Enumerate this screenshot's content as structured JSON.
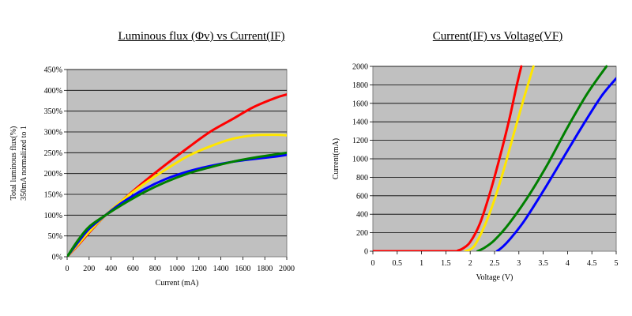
{
  "chart_data": [
    {
      "type": "line",
      "title": "Luminous flux (Φv) vs Current(IF)",
      "xlabel": "Current (mA)",
      "ylabel": [
        "Total luminous flux(%)",
        "350mA normalized to 1"
      ],
      "xlim": [
        0,
        2000
      ],
      "ylim": [
        0,
        450
      ],
      "x_ticks": [
        "0",
        "200",
        "400",
        "600",
        "800",
        "1000",
        "1200",
        "1400",
        "1600",
        "1800",
        "2000"
      ],
      "y_ticks": [
        "0%",
        "50%",
        "100%",
        "150%",
        "200%",
        "250%",
        "300%",
        "350%",
        "400%",
        "450%"
      ],
      "grid": "horizontal",
      "series": [
        {
          "color": "#ff0000",
          "x": [
            0,
            100,
            200,
            350,
            500,
            700,
            900,
            1100,
            1300,
            1500,
            1700,
            1900,
            2000
          ],
          "y": [
            0,
            28,
            58,
            100,
            135,
            180,
            222,
            262,
            300,
            330,
            360,
            382,
            390
          ]
        },
        {
          "color": "#ffe600",
          "x": [
            0,
            100,
            200,
            350,
            500,
            700,
            900,
            1100,
            1300,
            1500,
            1700,
            1900,
            2000
          ],
          "y": [
            0,
            30,
            60,
            100,
            135,
            175,
            210,
            242,
            265,
            283,
            292,
            293,
            292
          ]
        },
        {
          "color": "#0000ff",
          "x": [
            0,
            100,
            200,
            350,
            500,
            700,
            900,
            1100,
            1300,
            1500,
            1700,
            1900,
            2000
          ],
          "y": [
            0,
            35,
            67,
            100,
            130,
            162,
            187,
            205,
            218,
            228,
            235,
            241,
            245
          ]
        },
        {
          "color": "#008000",
          "x": [
            0,
            100,
            200,
            350,
            500,
            700,
            900,
            1100,
            1300,
            1500,
            1700,
            1900,
            2000
          ],
          "y": [
            0,
            40,
            72,
            100,
            125,
            155,
            180,
            200,
            215,
            228,
            238,
            246,
            250
          ]
        }
      ]
    },
    {
      "type": "line",
      "title": "Current(IF) vs Voltage(VF)",
      "xlabel": "Voltage (V)",
      "ylabel": "Current(mA)",
      "xlim": [
        0,
        5
      ],
      "ylim": [
        0,
        2000
      ],
      "x_ticks": [
        "0",
        "0.5",
        "1",
        "1.5",
        "2",
        "2.5",
        "3",
        "3.5",
        "4",
        "4.5",
        "5"
      ],
      "y_ticks": [
        "0",
        "200",
        "400",
        "600",
        "800",
        "1000",
        "1200",
        "1400",
        "1600",
        "1800",
        "2000"
      ],
      "grid": "horizontal",
      "series": [
        {
          "color": "#ff0000",
          "x": [
            0,
            1.6,
            1.75,
            1.85,
            2.0,
            2.2,
            2.4,
            2.6,
            2.8,
            2.95,
            3.05
          ],
          "y": [
            0,
            0,
            8,
            30,
            100,
            300,
            620,
            1000,
            1420,
            1780,
            2000
          ]
        },
        {
          "color": "#ffe600",
          "x": [
            1.9,
            2.0,
            2.1,
            2.3,
            2.5,
            2.7,
            2.9,
            3.1,
            3.3
          ],
          "y": [
            0,
            20,
            70,
            280,
            560,
            900,
            1280,
            1650,
            2000
          ]
        },
        {
          "color": "#008000",
          "x": [
            2.15,
            2.3,
            2.5,
            2.8,
            3.2,
            3.6,
            4.0,
            4.4,
            4.8
          ],
          "y": [
            0,
            40,
            120,
            300,
            600,
            950,
            1340,
            1700,
            2000
          ]
        },
        {
          "color": "#0000ff",
          "x": [
            2.55,
            2.65,
            2.8,
            3.1,
            3.5,
            3.9,
            4.3,
            4.7,
            5.0
          ],
          "y": [
            0,
            40,
            120,
            320,
            650,
            1000,
            1350,
            1680,
            1870
          ]
        }
      ]
    }
  ]
}
